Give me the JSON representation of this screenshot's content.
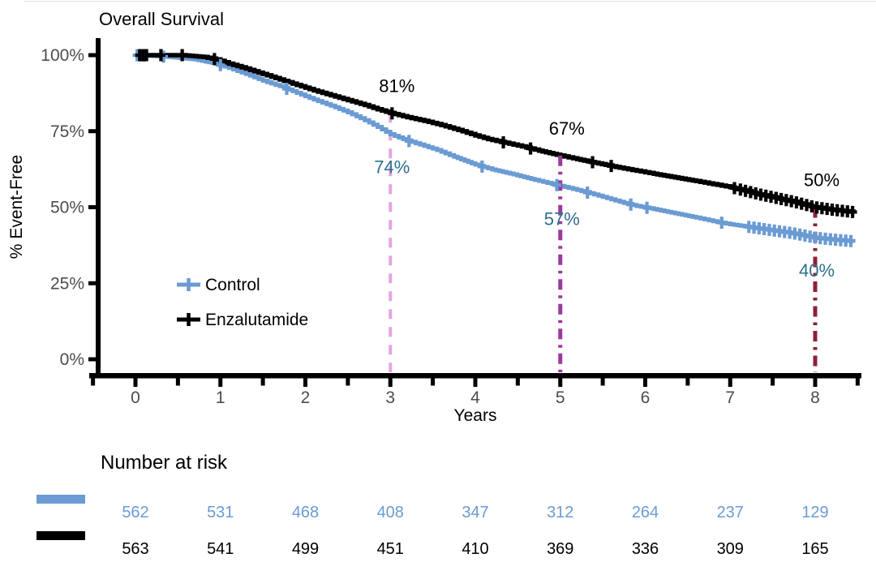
{
  "chart_data": {
    "type": "line",
    "subtype": "kaplan-meier-step",
    "title": "Overall Survival",
    "xlabel": "Years",
    "ylabel": "% Event-Free",
    "xlim": [
      -0.5,
      8.5
    ],
    "ylim": [
      0,
      100
    ],
    "x_ticks": [
      0,
      1,
      2,
      3,
      4,
      5,
      6,
      7,
      8
    ],
    "x_minor_step": 0.5,
    "y_ticks": [
      0,
      25,
      50,
      75,
      100
    ],
    "y_tick_labels": [
      "0%",
      "25%",
      "50%",
      "75%",
      "100%"
    ],
    "grid": false,
    "legend_position": "inside-left-lower",
    "axis_color": "#000000",
    "tick_label_color": "#4d4d4d",
    "series": [
      {
        "name": "Control",
        "color": "#6B9BD2",
        "label_color": "#2E6F8E",
        "survival_percent": [
          [
            0,
            100
          ],
          [
            0.4,
            99.4
          ],
          [
            0.7,
            98.6
          ],
          [
            0.95,
            97.2
          ],
          [
            1.1,
            95.8
          ],
          [
            1.3,
            93.8
          ],
          [
            1.5,
            91.6
          ],
          [
            1.7,
            89.8
          ],
          [
            1.9,
            87.6
          ],
          [
            2.1,
            85.4
          ],
          [
            2.3,
            83.4
          ],
          [
            2.5,
            81.2
          ],
          [
            2.7,
            78.6
          ],
          [
            2.85,
            76.4
          ],
          [
            3,
            74
          ],
          [
            3.15,
            72.4
          ],
          [
            3.35,
            70.6
          ],
          [
            3.55,
            68.8
          ],
          [
            3.75,
            66.6
          ],
          [
            4,
            64
          ],
          [
            4.2,
            62.4
          ],
          [
            4.45,
            60.8
          ],
          [
            4.7,
            59
          ],
          [
            4.85,
            58
          ],
          [
            5,
            57
          ],
          [
            5.15,
            56
          ],
          [
            5.35,
            54.6
          ],
          [
            5.55,
            53
          ],
          [
            5.75,
            51.4
          ],
          [
            5.9,
            50.4
          ],
          [
            6.1,
            49.4
          ],
          [
            6.35,
            48
          ],
          [
            6.6,
            46.6
          ],
          [
            6.8,
            45.4
          ],
          [
            7,
            44.4
          ],
          [
            7.25,
            43.4
          ],
          [
            7.5,
            42.4
          ],
          [
            7.75,
            41.4
          ],
          [
            8,
            40
          ],
          [
            8.2,
            39.4
          ],
          [
            8.45,
            38.8
          ]
        ],
        "censor_times": [
          0.02,
          0.06,
          0.1,
          0.33,
          1.0,
          1.78,
          3.22,
          4.08,
          4.96,
          5.32,
          5.83,
          6.02,
          6.9,
          7.22,
          7.28,
          7.34,
          7.4,
          7.46,
          7.52,
          7.58,
          7.64,
          7.7,
          7.76,
          7.82,
          7.88,
          7.94,
          8.0,
          8.06,
          8.12,
          8.18,
          8.24,
          8.3,
          8.36,
          8.42
        ],
        "annotations": [
          {
            "x": 3,
            "value": 74,
            "label": "74%",
            "side": "below"
          },
          {
            "x": 5,
            "value": 57,
            "label": "57%",
            "side": "below"
          },
          {
            "x": 8,
            "value": 40,
            "label": "40%",
            "side": "below"
          }
        ]
      },
      {
        "name": "Enzalutamide",
        "color": "#000000",
        "label_color": "#000000",
        "survival_percent": [
          [
            0,
            100
          ],
          [
            0.55,
            100
          ],
          [
            0.8,
            99.4
          ],
          [
            0.95,
            98.6
          ],
          [
            1.1,
            97.2
          ],
          [
            1.3,
            95.6
          ],
          [
            1.5,
            93.8
          ],
          [
            1.7,
            92
          ],
          [
            1.9,
            90.2
          ],
          [
            2.1,
            88.4
          ],
          [
            2.3,
            86.8
          ],
          [
            2.5,
            85.2
          ],
          [
            2.7,
            83.6
          ],
          [
            2.85,
            82.2
          ],
          [
            3,
            81
          ],
          [
            3.2,
            79.6
          ],
          [
            3.4,
            78.4
          ],
          [
            3.6,
            77
          ],
          [
            3.8,
            75.4
          ],
          [
            4,
            73.6
          ],
          [
            4.15,
            72.4
          ],
          [
            4.35,
            71.2
          ],
          [
            4.55,
            70
          ],
          [
            4.75,
            68.6
          ],
          [
            5,
            67
          ],
          [
            5.2,
            65.8
          ],
          [
            5.45,
            64.4
          ],
          [
            5.7,
            63
          ],
          [
            5.9,
            62
          ],
          [
            6.1,
            61
          ],
          [
            6.35,
            59.8
          ],
          [
            6.6,
            58.6
          ],
          [
            6.8,
            57.6
          ],
          [
            7,
            56.6
          ],
          [
            7.15,
            55.6
          ],
          [
            7.35,
            54.2
          ],
          [
            7.55,
            53
          ],
          [
            7.75,
            51.8
          ],
          [
            8,
            50
          ],
          [
            8.2,
            49.2
          ],
          [
            8.45,
            48.4
          ]
        ],
        "censor_times": [
          0.05,
          0.09,
          0.13,
          0.3,
          0.55,
          0.93,
          3.02,
          4.33,
          4.65,
          5.38,
          5.6,
          7.05,
          7.12,
          7.18,
          7.24,
          7.3,
          7.36,
          7.42,
          7.48,
          7.54,
          7.6,
          7.66,
          7.72,
          7.78,
          7.84,
          7.9,
          7.96,
          8.02,
          8.08,
          8.14,
          8.2,
          8.26,
          8.32,
          8.38,
          8.44
        ],
        "annotations": [
          {
            "x": 3,
            "value": 81,
            "label": "81%",
            "side": "above"
          },
          {
            "x": 5,
            "value": 67,
            "label": "67%",
            "side": "above"
          },
          {
            "x": 8,
            "value": 50,
            "label": "50%",
            "side": "above"
          }
        ]
      }
    ],
    "reference_lines": [
      {
        "x": 3,
        "top_value": 81,
        "color": "#E6A3E0",
        "style": "dashed"
      },
      {
        "x": 5,
        "top_value": 67,
        "color": "#9C3A9C",
        "style": "dashdot"
      },
      {
        "x": 8,
        "top_value": 50,
        "color": "#8B2139",
        "style": "dashdot"
      }
    ],
    "risk_table": {
      "title": "Number at risk",
      "times": [
        0,
        1,
        2,
        3,
        4,
        5,
        6,
        7,
        8
      ],
      "rows": [
        {
          "name": "Control",
          "color": "#6B9BD2",
          "values": [
            562,
            531,
            468,
            408,
            347,
            312,
            264,
            237,
            129
          ]
        },
        {
          "name": "Enzalutamide",
          "color": "#000000",
          "values": [
            563,
            541,
            499,
            451,
            410,
            369,
            336,
            309,
            165
          ]
        }
      ]
    }
  }
}
